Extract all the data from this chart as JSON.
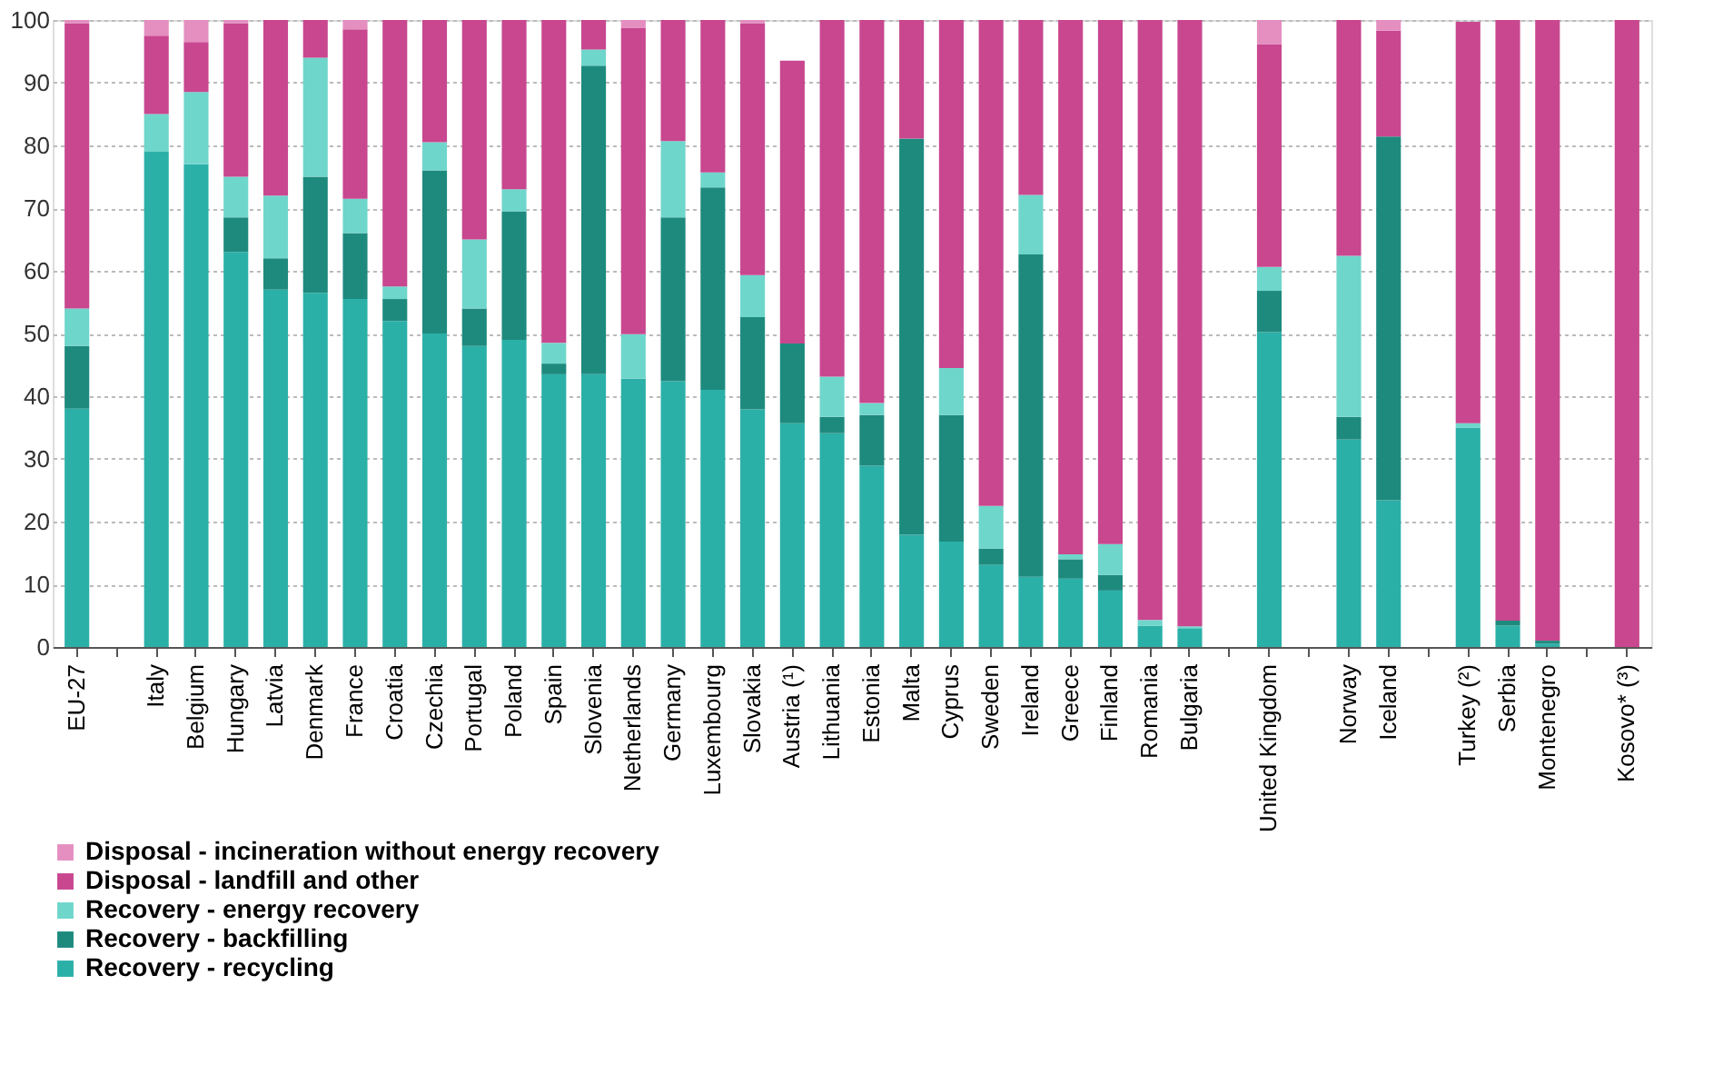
{
  "chart_data": {
    "type": "bar",
    "stacked": true,
    "categories": [
      "EU-27",
      null,
      "Italy",
      "Belgium",
      "Hungary",
      "Latvia",
      "Denmark",
      "France",
      "Croatia",
      "Czechia",
      "Portugal",
      "Poland",
      "Spain",
      "Slovenia",
      "Netherlands",
      "Germany",
      "Luxembourg",
      "Slovakia",
      "Austria (¹)",
      "Lithuania",
      "Estonia",
      "Malta",
      "Cyprus",
      "Sweden",
      "Ireland",
      "Greece",
      "Finland",
      "Romania",
      "Bulgaria",
      null,
      "United Kingdom",
      null,
      "Norway",
      "Iceland",
      null,
      "Turkey (²)",
      "Serbia",
      "Montenegro",
      null,
      "Kosovo* (³)"
    ],
    "series": [
      {
        "name": "Recovery - recycling",
        "color": "#2bb0a8",
        "values": [
          38,
          null,
          79,
          77,
          63,
          57,
          56.5,
          55.5,
          52,
          50,
          48,
          49,
          43.5,
          43.5,
          42.8,
          42.4,
          41,
          37.9,
          35.7,
          34.1,
          28.9,
          17.9,
          16.8,
          13.1,
          11.2,
          10.9,
          9,
          3.4,
          3,
          null,
          50.2,
          null,
          33.1,
          23.4,
          null,
          35,
          3.4,
          0.5,
          null,
          0
        ]
      },
      {
        "name": "Recovery - backfilling",
        "color": "#1e8a7e",
        "values": [
          10,
          null,
          0,
          0,
          5.5,
          5,
          18.5,
          10.5,
          3.5,
          26,
          6,
          20.5,
          1.7,
          49.2,
          0,
          26.1,
          32.3,
          14.7,
          12.7,
          2.6,
          8.1,
          63.2,
          20.2,
          2.6,
          51.4,
          3.1,
          2.5,
          0,
          0,
          null,
          6.6,
          null,
          3.6,
          58,
          null,
          0,
          0.8,
          0.5,
          null,
          0
        ]
      },
      {
        "name": "Recovery - energy recovery",
        "color": "#6fd6cb",
        "values": [
          6,
          null,
          6,
          11.5,
          6.5,
          10,
          19,
          5.5,
          2,
          4.5,
          11,
          3.5,
          3.3,
          2.6,
          7.1,
          12.2,
          2.4,
          6.7,
          0,
          6.4,
          1.9,
          0,
          7.5,
          6.8,
          9.5,
          0.8,
          4.9,
          0.9,
          0.3,
          null,
          3.8,
          null,
          25.7,
          0,
          null,
          0.7,
          0,
          0,
          null,
          0
        ]
      },
      {
        "name": "Disposal - landfill and other",
        "color": "#c8478f",
        "values": [
          45.5,
          null,
          12.5,
          8,
          24.5,
          28,
          6,
          27,
          42.5,
          19.5,
          35,
          27,
          51.5,
          4.7,
          48.8,
          19.3,
          24.3,
          40.2,
          45.1,
          56.9,
          61.1,
          18.9,
          55.5,
          77.5,
          27.9,
          85.2,
          83.6,
          95.7,
          96.7,
          null,
          35.5,
          null,
          37.6,
          16.9,
          null,
          64,
          95.8,
          99,
          null,
          100
        ]
      },
      {
        "name": "Disposal - incineration without energy recovery",
        "color": "#e48fc0",
        "values": [
          0.5,
          null,
          2.5,
          3.5,
          0.5,
          0,
          0,
          1.5,
          0,
          0,
          0,
          0,
          0,
          0,
          1.3,
          0,
          0,
          0.5,
          0,
          0,
          0,
          0,
          0,
          0,
          0,
          0,
          0,
          0,
          0,
          null,
          3.9,
          null,
          0,
          1.7,
          null,
          0,
          0,
          0,
          null,
          0
        ]
      }
    ],
    "ylim": [
      0,
      100
    ],
    "yticks": [
      0,
      10,
      20,
      30,
      40,
      50,
      60,
      70,
      80,
      90,
      100
    ],
    "grid": "y",
    "legend": "bottom"
  }
}
